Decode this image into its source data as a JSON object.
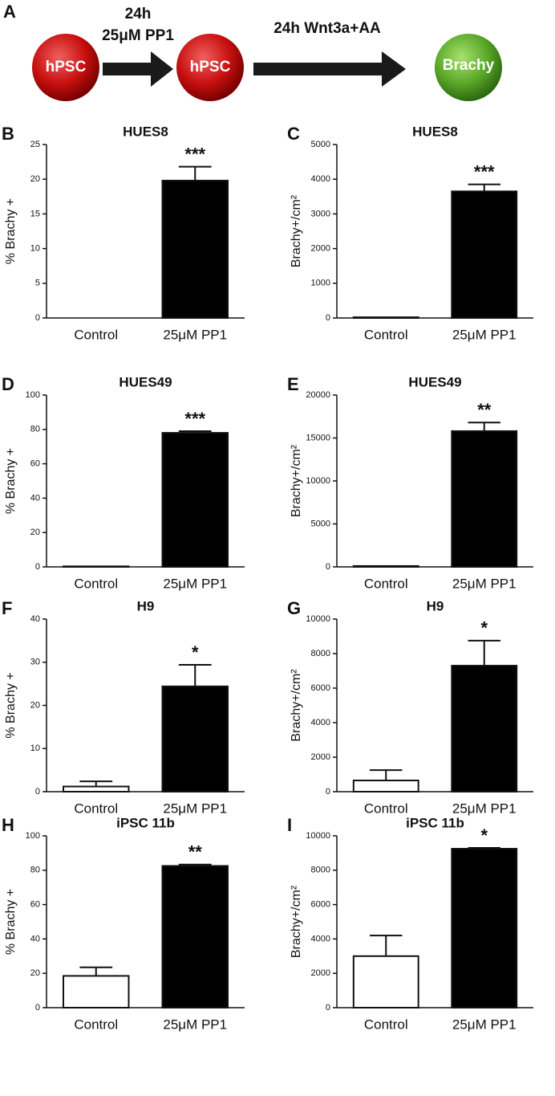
{
  "diagram": {
    "panel": "A",
    "start": "hPSC",
    "step1_time": "24h",
    "step1_treatment": "25μM PP1",
    "middle": "hPSC",
    "step2": "24h Wnt3a+AA",
    "end": "Brachy"
  },
  "chart_data": [
    {
      "type": "bar",
      "panel": "B",
      "title": "HUES8",
      "ylabel": "% Brachy +",
      "categories": [
        "Control",
        "25μM PP1"
      ],
      "values": [
        0,
        19.8
      ],
      "errors": [
        0,
        2.0
      ],
      "annotation": "***",
      "colors": [
        "#ffffff",
        "#000000"
      ],
      "ylim": [
        0,
        25
      ],
      "yticks": [
        0,
        5,
        10,
        15,
        20,
        25
      ]
    },
    {
      "type": "bar",
      "panel": "C",
      "title": "HUES8",
      "ylabel": "Brachy+/cm²",
      "categories": [
        "Control",
        "25μM PP1"
      ],
      "values": [
        20,
        3650
      ],
      "errors": [
        0,
        200
      ],
      "annotation": "***",
      "colors": [
        "#ffffff",
        "#000000"
      ],
      "ylim": [
        0,
        5000
      ],
      "yticks": [
        0,
        1000,
        2000,
        3000,
        4000,
        5000
      ]
    },
    {
      "type": "bar",
      "panel": "D",
      "title": "HUES49",
      "ylabel": "% Brachy +",
      "categories": [
        "Control",
        "25μM PP1"
      ],
      "values": [
        0.3,
        78
      ],
      "errors": [
        0,
        1
      ],
      "annotation": "***",
      "colors": [
        "#ffffff",
        "#000000"
      ],
      "ylim": [
        0,
        100
      ],
      "yticks": [
        0,
        20,
        40,
        60,
        80,
        100
      ]
    },
    {
      "type": "bar",
      "panel": "E",
      "title": "HUES49",
      "ylabel": "Brachy+/cm²",
      "categories": [
        "Control",
        "25μM PP1"
      ],
      "values": [
        100,
        15800
      ],
      "errors": [
        0,
        1000
      ],
      "annotation": "**",
      "colors": [
        "#ffffff",
        "#000000"
      ],
      "ylim": [
        0,
        20000
      ],
      "yticks": [
        0,
        5000,
        10000,
        15000,
        20000
      ]
    },
    {
      "type": "bar",
      "panel": "F",
      "title": "H9",
      "ylabel": "% Brachy +",
      "categories": [
        "Control",
        "25μM PP1"
      ],
      "values": [
        1.2,
        24.4
      ],
      "errors": [
        1.2,
        5
      ],
      "annotation": "*",
      "colors": [
        "#ffffff",
        "#000000"
      ],
      "ylim": [
        0,
        40
      ],
      "yticks": [
        0,
        10,
        20,
        30,
        40
      ]
    },
    {
      "type": "bar",
      "panel": "G",
      "title": "H9",
      "ylabel": "Brachy+/cm²",
      "categories": [
        "Control",
        "25μM PP1"
      ],
      "values": [
        650,
        7300
      ],
      "errors": [
        600,
        1450
      ],
      "annotation": "*",
      "colors": [
        "#ffffff",
        "#000000"
      ],
      "ylim": [
        0,
        10000
      ],
      "yticks": [
        0,
        2000,
        4000,
        6000,
        8000,
        10000
      ]
    },
    {
      "type": "bar",
      "panel": "H",
      "title": "iPSC 11b",
      "ylabel": "% Brachy +",
      "categories": [
        "Control",
        "25μM PP1"
      ],
      "values": [
        18.5,
        82.5
      ],
      "errors": [
        5,
        0.8
      ],
      "annotation": "**",
      "colors": [
        "#ffffff",
        "#000000"
      ],
      "ylim": [
        0,
        100
      ],
      "yticks": [
        0,
        20,
        40,
        60,
        80,
        100
      ]
    },
    {
      "type": "bar",
      "panel": "I",
      "title": "iPSC 11b",
      "ylabel": "Brachy+/cm²",
      "categories": [
        "Control",
        "25μM PP1"
      ],
      "values": [
        3000,
        9250
      ],
      "errors": [
        1200,
        50
      ],
      "annotation": "*",
      "colors": [
        "#ffffff",
        "#000000"
      ],
      "ylim": [
        0,
        10000
      ],
      "yticks": [
        0,
        2000,
        4000,
        6000,
        8000,
        10000
      ]
    }
  ]
}
